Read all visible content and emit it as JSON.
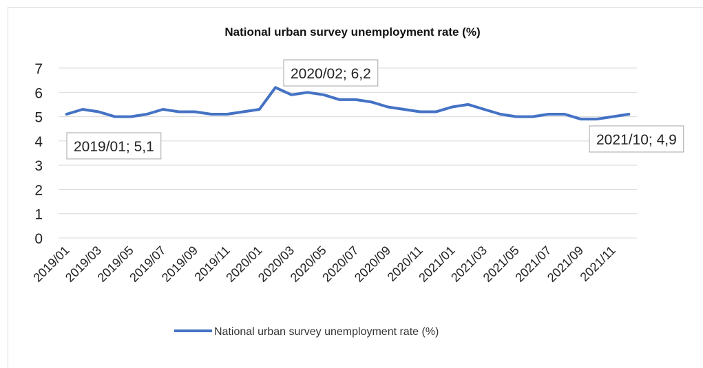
{
  "chart_data": {
    "type": "line",
    "title": "National urban survey unemployment rate (%)",
    "xlabel": "",
    "ylabel": "",
    "ylim": [
      0,
      7
    ],
    "yticks": [
      "0",
      "1",
      "2",
      "3",
      "4",
      "5",
      "6",
      "7"
    ],
    "grid": true,
    "legend_position": "bottom",
    "x": [
      "2019/01",
      "2019/02",
      "2019/03",
      "2019/04",
      "2019/05",
      "2019/06",
      "2019/07",
      "2019/08",
      "2019/09",
      "2019/10",
      "2019/11",
      "2019/12",
      "2020/01",
      "2020/02",
      "2020/03",
      "2020/04",
      "2020/05",
      "2020/06",
      "2020/07",
      "2020/08",
      "2020/09",
      "2020/10",
      "2020/11",
      "2020/12",
      "2021/01",
      "2021/02",
      "2021/03",
      "2021/04",
      "2021/05",
      "2021/06",
      "2021/07",
      "2021/08",
      "2021/09",
      "2021/10",
      "2021/11",
      "2021/12"
    ],
    "x_tick_labels": [
      "2019/01",
      "2019/03",
      "2019/05",
      "2019/07",
      "2019/09",
      "2019/11",
      "2020/01",
      "2020/03",
      "2020/05",
      "2020/07",
      "2020/09",
      "2020/11",
      "2021/01",
      "2021/03",
      "2021/05",
      "2021/07",
      "2021/09",
      "2021/11"
    ],
    "series": [
      {
        "name": "National urban survey unemployment rate (%)",
        "color": "#4472c4",
        "values": [
          5.1,
          5.3,
          5.2,
          5.0,
          5.0,
          5.1,
          5.3,
          5.2,
          5.2,
          5.1,
          5.1,
          5.2,
          5.3,
          6.2,
          5.9,
          6.0,
          5.9,
          5.7,
          5.7,
          5.6,
          5.4,
          5.3,
          5.2,
          5.2,
          5.4,
          5.5,
          5.3,
          5.1,
          5.0,
          5.0,
          5.1,
          5.1,
          4.9,
          4.9,
          5.0,
          5.1
        ]
      }
    ],
    "annotations": [
      {
        "text": "2019/01; 5,1",
        "index": 0
      },
      {
        "text": "2020/02; 6,2",
        "index": 13
      },
      {
        "text": "2021/10; 4,9",
        "index": 33
      }
    ]
  }
}
